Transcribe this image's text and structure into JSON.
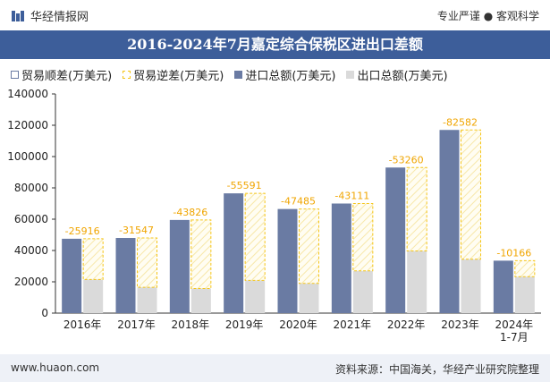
{
  "header": {
    "brand": "华经情报网",
    "tagline": "专业严谨 ● 客观科学"
  },
  "title": "2016-2024年7月嘉定综合保税区进出口差额",
  "legend": [
    "贸易顺差(万美元)",
    "贸易逆差(万美元)",
    "进口总额(万美元)",
    "出口总额(万美元)"
  ],
  "footer": {
    "left": "www.huaon.com",
    "right": "资料来源：中国海关，华经产业研究院整理"
  },
  "colors": {
    "import": "#6a7ba3",
    "export": "#dadada",
    "deficit_border": "#f5c518",
    "label": "#f0a500",
    "title_bg": "#3d5e9a"
  },
  "chart_data": {
    "type": "bar",
    "title": "2016-2024年7月嘉定综合保税区进出口差额",
    "categories": [
      "2016年",
      "2017年",
      "2018年",
      "2019年",
      "2020年",
      "2021年",
      "2022年",
      "2023年",
      "2024年\n1-7月"
    ],
    "series": [
      {
        "name": "进口总额(万美元)",
        "values": [
          47500,
          48000,
          59500,
          76500,
          66500,
          70000,
          93000,
          117000,
          33500
        ]
      },
      {
        "name": "出口总额(万美元)",
        "values": [
          21500,
          16500,
          15700,
          20900,
          19000,
          27000,
          39700,
          34400,
          23300
        ]
      },
      {
        "name": "贸易逆差(万美元)",
        "values": [
          -25916,
          -31547,
          -43826,
          -55591,
          -47485,
          -43111,
          -53260,
          -82582,
          -10166
        ]
      }
    ],
    "ylim": [
      0,
      140000
    ],
    "yticks": [
      0,
      20000,
      40000,
      60000,
      80000,
      100000,
      120000,
      140000
    ],
    "xlabel": "",
    "ylabel": ""
  }
}
